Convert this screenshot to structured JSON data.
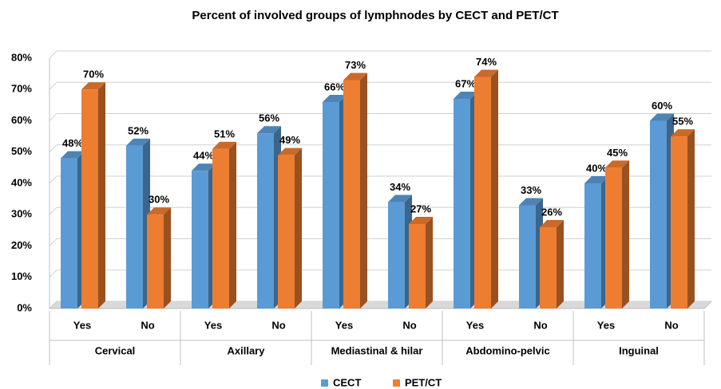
{
  "chart_data": {
    "type": "bar3d",
    "title": "Percent of involved groups of lymphnodes by CECT and PET/CT",
    "categories": [
      "Yes",
      "No",
      "Yes",
      "No",
      "Yes",
      "No",
      "Yes",
      "No",
      "Yes",
      "No"
    ],
    "groups": [
      "Cervical",
      "Axillary",
      "Mediastinal & hilar",
      "Abdomino-pelvic",
      "Inguinal"
    ],
    "series": [
      {
        "name": "CECT",
        "color": "#5b9bd5",
        "values": [
          48,
          52,
          44,
          56,
          66,
          34,
          67,
          33,
          40,
          60
        ],
        "value_labels": [
          "48%",
          "52%",
          "44%",
          "56%",
          "66%",
          "34%",
          "67%",
          "33%",
          "40%",
          "60%"
        ]
      },
      {
        "name": "PET/CT",
        "color": "#ed7d31",
        "values": [
          70,
          30,
          51,
          49,
          73,
          27,
          74,
          26,
          45,
          55
        ],
        "value_labels": [
          "70%",
          "30%",
          "51%",
          "49%",
          "73%",
          "27%",
          "74%",
          "26%",
          "45%",
          "55%"
        ]
      }
    ],
    "ylim": [
      0,
      80
    ],
    "yticks": [
      {
        "value": 0,
        "label": "0%"
      },
      {
        "value": 10,
        "label": "10%"
      },
      {
        "value": 20,
        "label": "20%"
      },
      {
        "value": 30,
        "label": "30%"
      },
      {
        "value": 40,
        "label": "40%"
      },
      {
        "value": 50,
        "label": "50%"
      },
      {
        "value": 60,
        "label": "60%"
      },
      {
        "value": 70,
        "label": "70%"
      },
      {
        "value": 80,
        "label": "80%"
      }
    ],
    "grid": true,
    "legend": "bottom"
  }
}
